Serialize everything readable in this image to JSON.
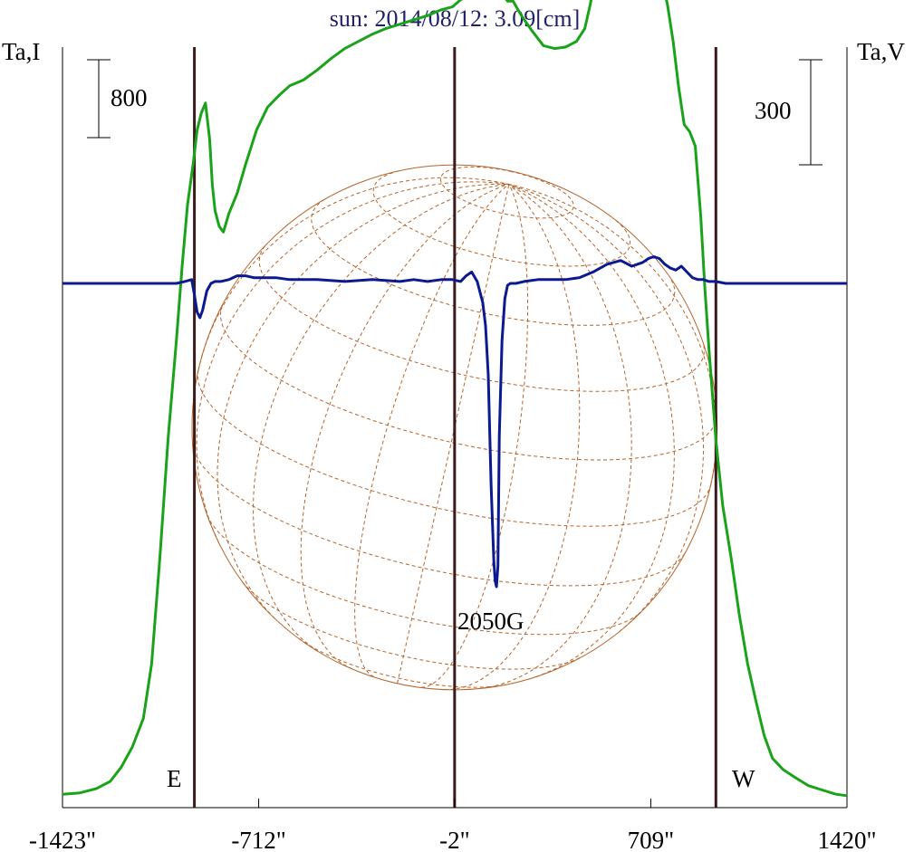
{
  "chart_data": {
    "type": "line",
    "title": "sun: 2014/08/12: 3.09[cm]",
    "left_axis_label": "Ta,I",
    "right_axis_label": "Ta,V",
    "x_unit": "arcsec",
    "xlim": [
      -1423,
      1420
    ],
    "x_ticks": [
      -1423,
      -712,
      -2,
      709,
      1420
    ],
    "x_tick_labels": [
      "-1423\"",
      "-712\"",
      "-2\"",
      "709\"",
      "1420\""
    ],
    "limb_lines_x": [
      -945,
      -2,
      945
    ],
    "limb_labels": {
      "east": "E",
      "west": "W"
    },
    "scale_bar_left": {
      "label": "800",
      "value": 800
    },
    "scale_bar_right": {
      "label": "300",
      "value": 300
    },
    "intensity_ylim": [
      0,
      5240
    ],
    "polarization_ylim": [
      -1590,
      310
    ],
    "annotation": {
      "text": "2050G",
      "x": 150
    },
    "colors": {
      "intensity": "#1aa31a",
      "polarization": "#0b1a8f",
      "limb": "#3a1a1a",
      "grid": "#b5642a",
      "title": "#1f1f6e"
    },
    "series": [
      {
        "key": "intensity",
        "x": [
          -1423,
          -1360,
          -1300,
          -1250,
          -1210,
          -1170,
          -1130,
          -1100,
          -1070,
          -1040,
          -1010,
          -990,
          -970,
          -950,
          -935,
          -920,
          -905,
          -890,
          -880,
          -870,
          -855,
          -840,
          -820,
          -790,
          -760,
          -720,
          -680,
          -640,
          -600,
          -550,
          -500,
          -450,
          -400,
          -350,
          -300,
          -250,
          -200,
          -150,
          -100,
          -50,
          -10,
          20,
          60,
          100,
          120,
          130,
          140,
          150,
          160,
          175,
          190,
          210,
          240,
          280,
          320,
          360,
          400,
          440,
          470,
          490,
          510,
          540,
          570,
          600,
          630,
          660,
          690,
          709,
          730,
          750,
          770,
          790,
          810,
          830,
          850,
          870,
          890,
          905,
          920,
          945,
          970,
          1000,
          1030,
          1060,
          1090,
          1120,
          1150,
          1190,
          1230,
          1280,
          1330,
          1380,
          1420
        ],
        "values": [
          30,
          40,
          70,
          120,
          220,
          360,
          560,
          940,
          1680,
          2520,
          3200,
          3700,
          4140,
          4420,
          4660,
          4780,
          4850,
          4600,
          4280,
          4100,
          3990,
          3950,
          4080,
          4220,
          4420,
          4660,
          4820,
          4900,
          4970,
          5010,
          5080,
          5160,
          5230,
          5280,
          5330,
          5370,
          5400,
          5430,
          5460,
          5500,
          5520,
          5570,
          5610,
          5710,
          6000,
          6430,
          6220,
          5850,
          5640,
          5600,
          5560,
          5560,
          5460,
          5350,
          5250,
          5230,
          5240,
          5280,
          5370,
          5540,
          5750,
          5650,
          5620,
          5680,
          5600,
          5830,
          5920,
          5920,
          5790,
          5720,
          5530,
          5280,
          4960,
          4700,
          4650,
          4550,
          4060,
          3560,
          3130,
          2500,
          2040,
          1680,
          1280,
          940,
          680,
          440,
          280,
          200,
          150,
          90,
          60,
          30,
          20
        ]
      },
      {
        "key": "polarization",
        "x": [
          -1423,
          -1300,
          -1200,
          -1100,
          -1010,
          -980,
          -955,
          -945,
          -935,
          -925,
          -915,
          -900,
          -885,
          -870,
          -850,
          -820,
          -790,
          -760,
          -730,
          -700,
          -650,
          -600,
          -500,
          -400,
          -300,
          -200,
          -150,
          -100,
          -50,
          -10,
          20,
          40,
          60,
          80,
          100,
          110,
          120,
          130,
          140,
          145,
          150,
          155,
          160,
          170,
          180,
          190,
          200,
          220,
          250,
          300,
          350,
          400,
          450,
          500,
          550,
          600,
          640,
          660,
          680,
          700,
          720,
          740,
          760,
          780,
          800,
          820,
          840,
          860,
          880,
          900,
          920,
          945,
          980,
          1050,
          1150,
          1250,
          1420
        ],
        "values": [
          0,
          0,
          0,
          0,
          0,
          10,
          20,
          -60,
          -150,
          -180,
          -140,
          -40,
          0,
          10,
          10,
          20,
          40,
          40,
          30,
          30,
          30,
          20,
          20,
          10,
          20,
          10,
          20,
          10,
          20,
          20,
          10,
          40,
          60,
          10,
          -100,
          -220,
          -480,
          -1050,
          -1450,
          -1560,
          -1590,
          -1480,
          -800,
          -300,
          -80,
          -10,
          0,
          0,
          10,
          20,
          20,
          20,
          30,
          60,
          100,
          120,
          90,
          100,
          110,
          130,
          140,
          130,
          100,
          80,
          70,
          90,
          60,
          30,
          20,
          20,
          10,
          10,
          0,
          0,
          0,
          0,
          0
        ]
      }
    ]
  }
}
